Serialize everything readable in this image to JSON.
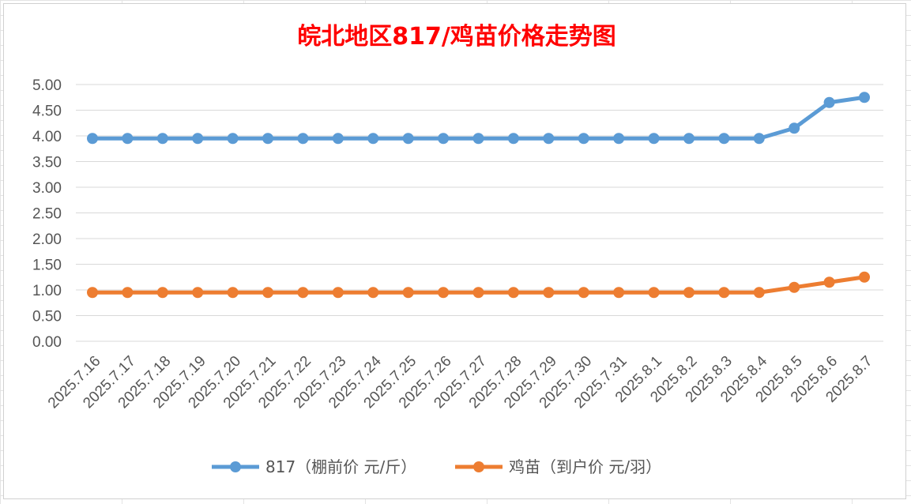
{
  "chart_data": {
    "type": "line",
    "title": "皖北地区817/鸡苗价格走势图",
    "xlabel": "",
    "ylabel": "",
    "ylim": [
      0,
      5
    ],
    "yticks": [
      "0.00",
      "0.50",
      "1.00",
      "1.50",
      "2.00",
      "2.50",
      "3.00",
      "3.50",
      "4.00",
      "4.50",
      "5.00"
    ],
    "grid": true,
    "legend_position": "bottom",
    "categories": [
      "2025.7.16",
      "2025.7.17",
      "2025.7.18",
      "2025.7.19",
      "2025.7.20",
      "2025.7.21",
      "2025.7.22",
      "2025.7.23",
      "2025.7.24",
      "2025.7.25",
      "2025.7.26",
      "2025.7.27",
      "2025.7.28",
      "2025.7.29",
      "2025.7.30",
      "2025.7.31",
      "2025.8.1",
      "2025.8.2",
      "2025.8.3",
      "2025.8.4",
      "2025.8.5",
      "2025.8.6",
      "2025.8.7"
    ],
    "series": [
      {
        "name": "817（棚前价 元/斤）",
        "color": "#5b9bd5",
        "values": [
          3.95,
          3.95,
          3.95,
          3.95,
          3.95,
          3.95,
          3.95,
          3.95,
          3.95,
          3.95,
          3.95,
          3.95,
          3.95,
          3.95,
          3.95,
          3.95,
          3.95,
          3.95,
          3.95,
          3.95,
          4.15,
          4.65,
          4.75
        ]
      },
      {
        "name": "鸡苗（到户价 元/羽）",
        "color": "#ed7d31",
        "values": [
          0.95,
          0.95,
          0.95,
          0.95,
          0.95,
          0.95,
          0.95,
          0.95,
          0.95,
          0.95,
          0.95,
          0.95,
          0.95,
          0.95,
          0.95,
          0.95,
          0.95,
          0.95,
          0.95,
          0.95,
          1.05,
          1.15,
          1.25
        ]
      }
    ]
  }
}
